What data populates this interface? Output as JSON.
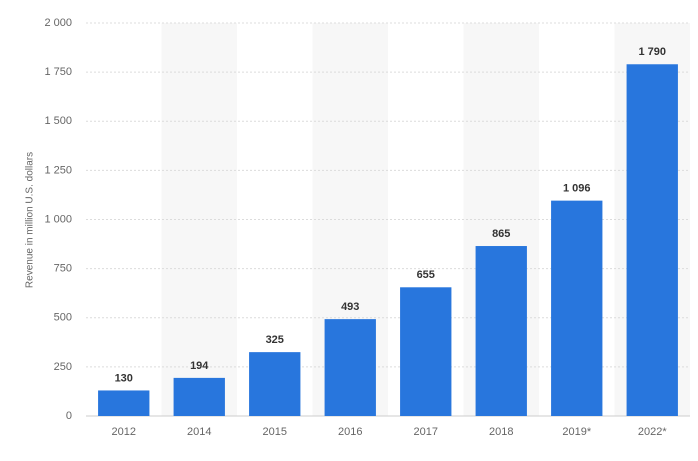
{
  "chart_data": {
    "type": "bar",
    "y_label": "Revenue in million U.S. dollars",
    "categories": [
      "2012",
      "2014",
      "2015",
      "2016",
      "2017",
      "2018",
      "2019*",
      "2022*"
    ],
    "values": [
      130,
      194,
      325,
      493,
      655,
      865,
      1096,
      1790
    ],
    "value_labels": [
      "130",
      "194",
      "325",
      "493",
      "655",
      "865",
      "1 096",
      "1 790"
    ],
    "color": "#2876dd",
    "ylim": [
      0,
      2000
    ],
    "yticks": [
      0,
      250,
      500,
      750,
      {
        "value": 1000,
        "label": "1 000"
      },
      {
        "value": 1250,
        "label": "1 250"
      },
      {
        "value": 1500,
        "label": "1 500"
      },
      {
        "value": 1750,
        "label": "1 750"
      },
      {
        "value": 2000,
        "label": "2 000"
      }
    ],
    "grid": true
  }
}
